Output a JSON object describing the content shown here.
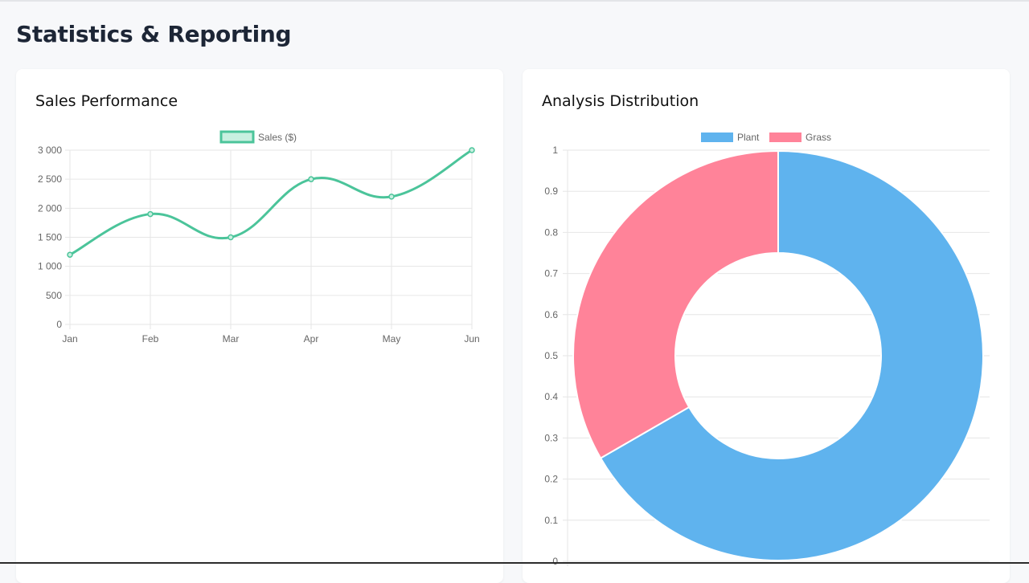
{
  "page": {
    "title": "Statistics & Reporting"
  },
  "colors": {
    "line": "#4bc49a",
    "line_fill": "#c8f0e0",
    "plant": "#5fb3ee",
    "grass": "#ff8399",
    "grid": "#e6e6e6",
    "axis_text": "#666666"
  },
  "chart_data": [
    {
      "type": "line",
      "title": "Sales Performance",
      "categories": [
        "Jan",
        "Feb",
        "Mar",
        "Apr",
        "May",
        "Jun"
      ],
      "series": [
        {
          "name": "Sales ($)",
          "values": [
            1200,
            1900,
            1500,
            2500,
            2200,
            3000
          ]
        }
      ],
      "ylim": [
        0,
        3000
      ],
      "yticks": [
        0,
        500,
        1000,
        1500,
        2000,
        2500,
        3000
      ],
      "ytick_labels": [
        "0",
        "500",
        "1 000",
        "1 500",
        "2 000",
        "2 500",
        "3 000"
      ],
      "grid": true,
      "legend": "top-center",
      "smooth": true
    },
    {
      "type": "pie",
      "variant": "doughnut",
      "title": "Analysis Distribution",
      "labels": [
        "Plant",
        "Grass"
      ],
      "values": [
        2,
        1
      ],
      "yticks": [
        "1",
        "0.9",
        "0.8",
        "0.7",
        "0.6",
        "0.5",
        "0.4",
        "0.3",
        "0.2",
        "0.1",
        "0"
      ],
      "grid": true,
      "legend": "top-center"
    }
  ]
}
